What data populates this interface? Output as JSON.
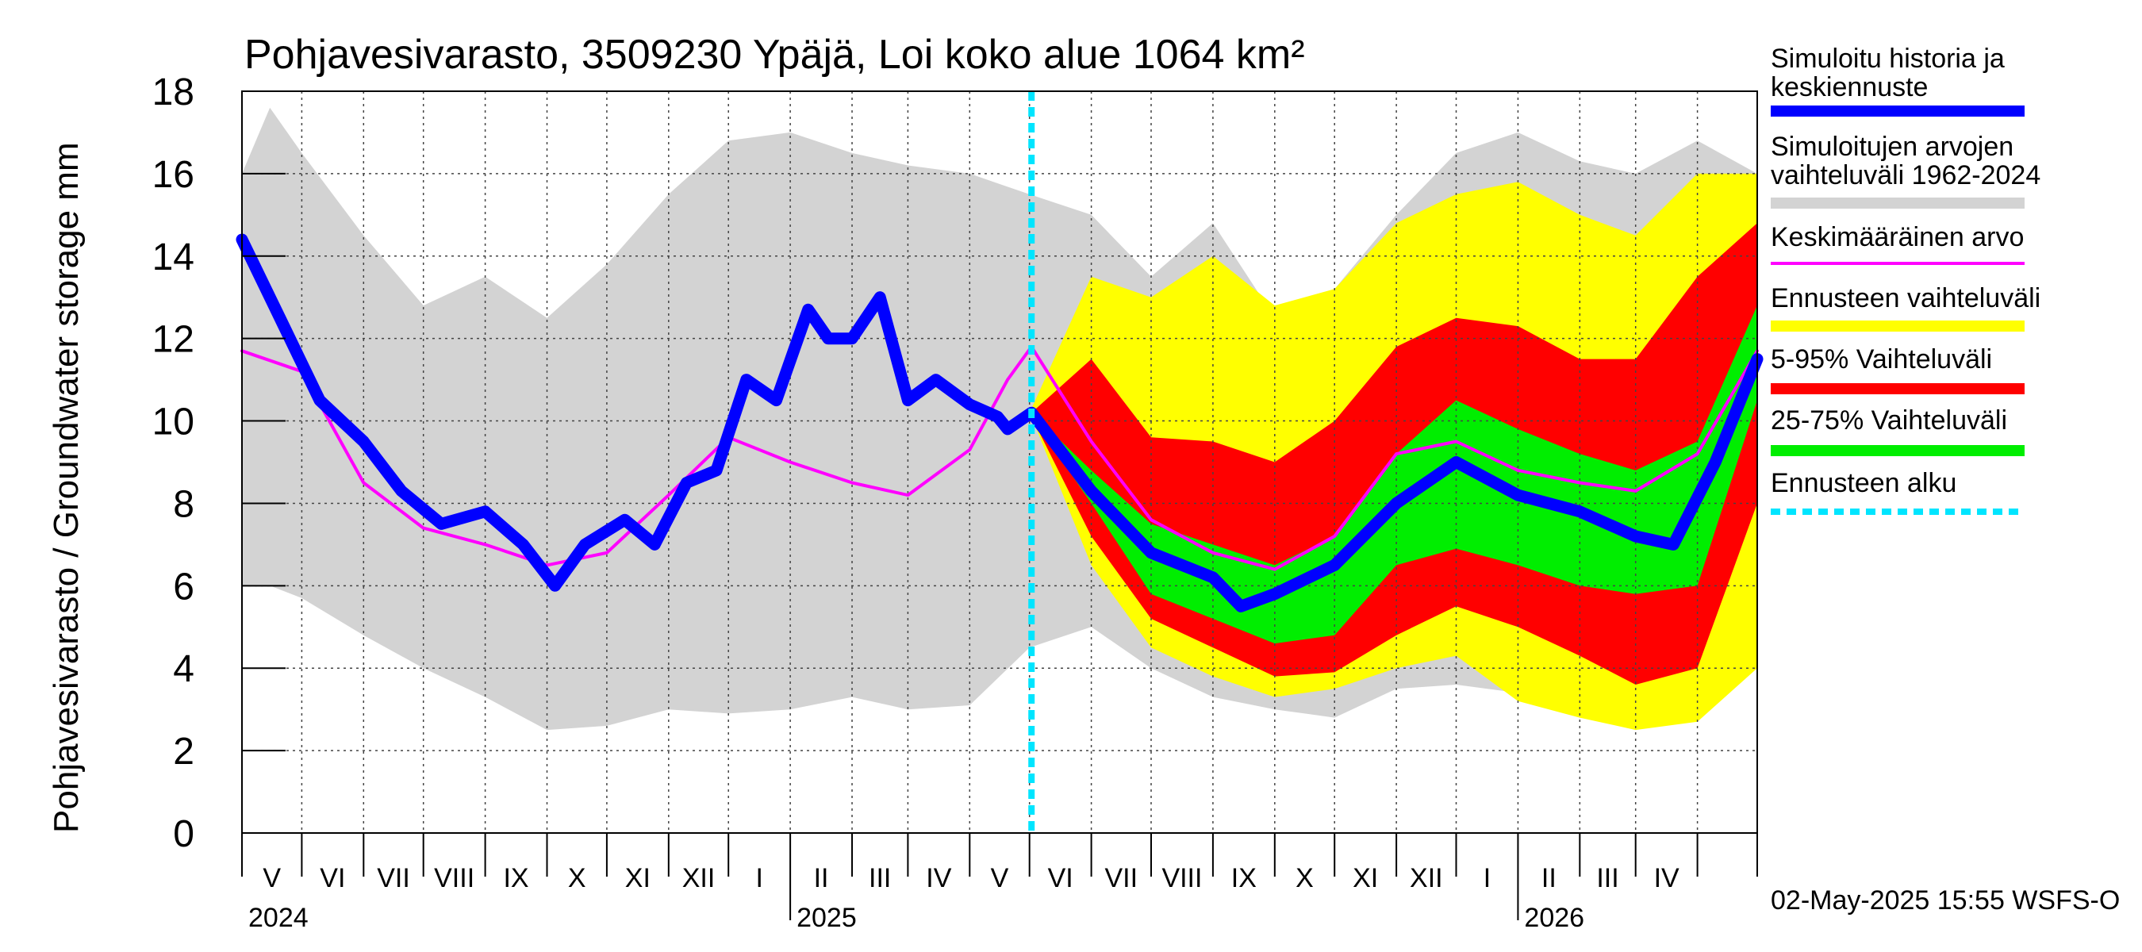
{
  "chart_data": {
    "type": "area",
    "title": "Pohjavesivarasto, 3509230 Ypäjä, Loi koko alue 1064 km²",
    "ylabel": "Pohjavesivarasto / Groundwater storage   mm",
    "ylim": [
      0,
      18
    ],
    "yticks": [
      "0",
      "2",
      "4",
      "6",
      "8",
      "10",
      "12",
      "14",
      "16",
      "18"
    ],
    "xlim": [
      "2024-04-01",
      "2026-05-01"
    ],
    "month_labels": [
      "V",
      "VI",
      "VII",
      "VIII",
      "IX",
      "X",
      "XI",
      "XII",
      "I",
      "II",
      "III",
      "IV",
      "V",
      "VI",
      "VII",
      "VIII",
      "IX",
      "X",
      "XI",
      "XII",
      "I",
      "II",
      "III",
      "IV"
    ],
    "year_labels": [
      "2024",
      "2025",
      "2026"
    ],
    "forecast_start": "2025-05-02",
    "timestamp": "02-May-2025 15:55 WSFS-O",
    "grid": true,
    "legend_position": "right",
    "legend": [
      {
        "label": "Simuloitu historia ja keskiennuste",
        "color": "#0000ff"
      },
      {
        "label": "Simuloitujen arvojen vaihteluväli 1962-2024",
        "color": "#d3d3d3"
      },
      {
        "label": "Keskimääräinen arvo",
        "color": "#ff00ff"
      },
      {
        "label": "Ennusteen vaihteluväli",
        "color": "#ffff00"
      },
      {
        "label": "5-95% Vaihteluväli",
        "color": "#ff0000"
      },
      {
        "label": "25-75% Vaihteluväli",
        "color": "#00ee00"
      },
      {
        "label": "Ennusteen alku",
        "color": "#00e5ff"
      }
    ],
    "series": {
      "hist_range": {
        "dates": [
          "2024-04-01",
          "2024-04-15",
          "2024-05-01",
          "2024-06-01",
          "2024-07-01",
          "2024-08-01",
          "2024-09-01",
          "2024-10-01",
          "2024-11-01",
          "2024-12-01",
          "2025-01-01",
          "2025-02-01",
          "2025-03-01",
          "2025-04-01",
          "2025-05-01",
          "2025-06-01",
          "2025-07-01",
          "2025-08-01",
          "2025-09-01",
          "2025-10-01",
          "2025-11-01",
          "2025-12-01",
          "2026-01-01",
          "2026-02-01",
          "2026-03-01",
          "2026-04-01",
          "2026-05-01"
        ],
        "upper": [
          16.0,
          17.6,
          16.5,
          14.5,
          12.8,
          13.5,
          12.5,
          13.8,
          15.5,
          16.8,
          17.0,
          16.5,
          16.2,
          16.0,
          15.5,
          15.0,
          13.5,
          14.8,
          12.5,
          13.2,
          15.0,
          16.5,
          17.0,
          16.3,
          16.0,
          16.8,
          16.0
        ],
        "lower": [
          6.0,
          6.0,
          5.7,
          4.8,
          4.0,
          3.3,
          2.5,
          2.6,
          3.0,
          2.9,
          3.0,
          3.3,
          3.0,
          3.1,
          4.5,
          5.0,
          4.0,
          3.3,
          3.0,
          2.8,
          3.5,
          3.6,
          3.4,
          3.1,
          3.0,
          4.0,
          6.0
        ]
      },
      "forecast_range": {
        "dates": [
          "2025-05-02",
          "2025-06-01",
          "2025-07-01",
          "2025-08-01",
          "2025-09-01",
          "2025-10-01",
          "2025-11-01",
          "2025-12-01",
          "2026-01-01",
          "2026-02-01",
          "2026-03-01",
          "2026-04-01",
          "2026-05-01"
        ],
        "upper": [
          10.3,
          13.5,
          13.0,
          14.0,
          12.8,
          13.2,
          14.8,
          15.5,
          15.8,
          15.0,
          14.5,
          16.0,
          16.0
        ],
        "lower": [
          10.1,
          6.5,
          4.5,
          3.8,
          3.3,
          3.5,
          4.0,
          4.3,
          3.2,
          2.8,
          2.5,
          2.7,
          4.0
        ]
      },
      "p5_95": {
        "dates": [
          "2025-05-02",
          "2025-06-01",
          "2025-07-01",
          "2025-08-01",
          "2025-09-01",
          "2025-10-01",
          "2025-11-01",
          "2025-12-01",
          "2026-01-01",
          "2026-02-01",
          "2026-03-01",
          "2026-04-01",
          "2026-05-01"
        ],
        "upper": [
          10.2,
          11.5,
          9.6,
          9.5,
          9.0,
          10.0,
          11.8,
          12.5,
          12.3,
          11.5,
          11.5,
          13.5,
          14.8
        ],
        "lower": [
          10.1,
          7.2,
          5.2,
          4.5,
          3.8,
          3.9,
          4.8,
          5.5,
          5.0,
          4.3,
          3.6,
          4.0,
          8.0
        ]
      },
      "p25_75": {
        "dates": [
          "2025-05-02",
          "2025-06-01",
          "2025-07-01",
          "2025-08-01",
          "2025-09-01",
          "2025-10-01",
          "2025-11-01",
          "2025-12-01",
          "2026-01-01",
          "2026-02-01",
          "2026-03-01",
          "2026-04-01",
          "2026-05-01"
        ],
        "upper": [
          10.2,
          8.8,
          7.5,
          7.0,
          6.5,
          7.2,
          9.2,
          10.5,
          9.8,
          9.2,
          8.8,
          9.5,
          12.8
        ],
        "lower": [
          10.1,
          8.0,
          5.8,
          5.2,
          4.6,
          4.8,
          6.5,
          6.9,
          6.5,
          6.0,
          5.8,
          6.0,
          10.5
        ]
      },
      "hist_and_median": {
        "dates": [
          "2024-04-01",
          "2024-04-20",
          "2024-05-10",
          "2024-06-01",
          "2024-06-20",
          "2024-07-10",
          "2024-08-01",
          "2024-08-20",
          "2024-09-05",
          "2024-09-20",
          "2024-10-10",
          "2024-10-25",
          "2024-11-10",
          "2024-11-25",
          "2024-12-10",
          "2024-12-25",
          "2025-01-10",
          "2025-01-20",
          "2025-02-01",
          "2025-02-15",
          "2025-03-01",
          "2025-03-15",
          "2025-04-01",
          "2025-04-15",
          "2025-04-20",
          "2025-05-02",
          "2025-06-01",
          "2025-07-01",
          "2025-08-01",
          "2025-08-15",
          "2025-09-01",
          "2025-10-01",
          "2025-11-01",
          "2025-12-01",
          "2026-01-01",
          "2026-02-01",
          "2026-03-01",
          "2026-03-20",
          "2026-04-10",
          "2026-05-01"
        ],
        "values": [
          14.4,
          12.5,
          10.5,
          9.5,
          8.3,
          7.5,
          7.8,
          7.0,
          6.0,
          7.0,
          7.6,
          7.0,
          8.5,
          8.8,
          11.0,
          10.5,
          12.7,
          12.0,
          12.0,
          13.0,
          10.5,
          11.0,
          10.4,
          10.1,
          9.8,
          10.2,
          8.3,
          6.8,
          6.2,
          5.5,
          5.8,
          6.5,
          8.0,
          9.0,
          8.2,
          7.8,
          7.2,
          7.0,
          9.0,
          11.5
        ]
      },
      "mean": {
        "dates": [
          "2024-04-01",
          "2024-05-01",
          "2024-06-01",
          "2024-07-01",
          "2024-08-01",
          "2024-09-01",
          "2024-10-01",
          "2024-11-01",
          "2024-12-01",
          "2025-01-01",
          "2025-02-01",
          "2025-03-01",
          "2025-04-01",
          "2025-04-20",
          "2025-05-02",
          "2025-06-01",
          "2025-07-01",
          "2025-08-01",
          "2025-09-01",
          "2025-10-01",
          "2025-11-01",
          "2025-12-01",
          "2026-01-01",
          "2026-02-01",
          "2026-03-01",
          "2026-04-01",
          "2026-05-01"
        ],
        "values": [
          11.7,
          11.2,
          8.5,
          7.4,
          7.0,
          6.5,
          6.8,
          8.2,
          9.6,
          9.0,
          8.5,
          8.2,
          9.3,
          11.0,
          11.8,
          9.5,
          7.6,
          6.8,
          6.4,
          7.2,
          9.2,
          9.5,
          8.8,
          8.5,
          8.3,
          9.2,
          11.7
        ]
      }
    }
  }
}
